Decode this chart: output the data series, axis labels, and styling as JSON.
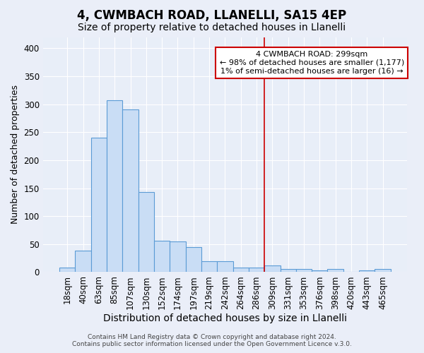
{
  "title1": "4, CWMBACH ROAD, LLANELLI, SA15 4EP",
  "title2": "Size of property relative to detached houses in Llanelli",
  "xlabel": "Distribution of detached houses by size in Llanelli",
  "ylabel": "Number of detached properties",
  "bar_labels": [
    "18sqm",
    "40sqm",
    "63sqm",
    "85sqm",
    "107sqm",
    "130sqm",
    "152sqm",
    "174sqm",
    "197sqm",
    "219sqm",
    "242sqm",
    "264sqm",
    "286sqm",
    "309sqm",
    "331sqm",
    "353sqm",
    "376sqm",
    "398sqm",
    "420sqm",
    "443sqm",
    "465sqm"
  ],
  "bar_values": [
    8,
    38,
    240,
    307,
    291,
    143,
    56,
    55,
    45,
    20,
    20,
    8,
    8,
    12,
    5,
    5,
    3,
    5,
    0,
    3,
    5
  ],
  "bar_color": "#c9ddf5",
  "bar_edge_color": "#5b9bd5",
  "bg_color": "#e8eef8",
  "grid_color": "#ffffff",
  "annotation_text": "4 CWMBACH ROAD: 299sqm\n← 98% of detached houses are smaller (1,177)\n1% of semi-detached houses are larger (16) →",
  "annotation_box_color": "#ffffff",
  "annotation_border_color": "#cc0000",
  "ylim": [
    0,
    420
  ],
  "yticks": [
    0,
    50,
    100,
    150,
    200,
    250,
    300,
    350,
    400
  ],
  "footer_text": "Contains HM Land Registry data © Crown copyright and database right 2024.\nContains public sector information licensed under the Open Government Licence v.3.0.",
  "title1_fontsize": 12,
  "title2_fontsize": 10,
  "xlabel_fontsize": 10,
  "ylabel_fontsize": 9,
  "tick_fontsize": 8.5,
  "footer_fontsize": 6.5
}
